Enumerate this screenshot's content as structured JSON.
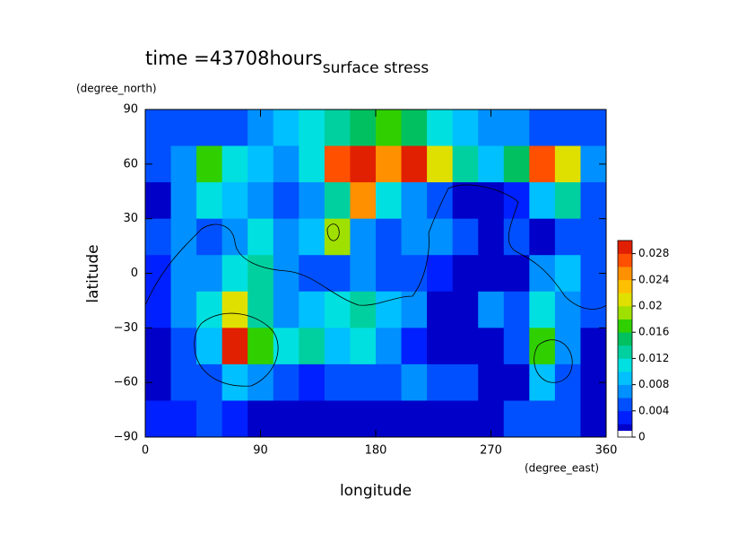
{
  "chart_data": {
    "type": "contour",
    "title": "surface stress",
    "annotation": "time =43708hours",
    "xlabel": "longitude",
    "ylabel": "latitude",
    "xunit": "(degree_east)",
    "yunit": "(degree_north)",
    "xlim": [
      0,
      360
    ],
    "ylim": [
      -90,
      90
    ],
    "xticks": [
      0,
      90,
      180,
      270,
      360
    ],
    "yticks": [
      {
        "value": -90,
        "label": "−90"
      },
      {
        "value": -60,
        "label": "−60"
      },
      {
        "value": -30,
        "label": "−30"
      },
      0,
      30,
      60,
      90
    ],
    "x": [
      10,
      30,
      50,
      70,
      90,
      110,
      130,
      150,
      170,
      190,
      210,
      230,
      250,
      270,
      290,
      310,
      330,
      350
    ],
    "y": [
      80,
      60,
      40,
      20,
      0,
      -20,
      -40,
      -60,
      -80
    ],
    "z": [
      [
        0.004,
        0.005,
        0.005,
        0.005,
        0.006,
        0.008,
        0.01,
        0.012,
        0.014,
        0.016,
        0.014,
        0.01,
        0.008,
        0.006,
        0.006,
        0.005,
        0.005,
        0.004
      ],
      [
        0.004,
        0.006,
        0.016,
        0.01,
        0.008,
        0.006,
        0.01,
        0.026,
        0.028,
        0.024,
        0.03,
        0.02,
        0.012,
        0.008,
        0.014,
        0.026,
        0.02,
        0.006
      ],
      [
        0.001,
        0.006,
        0.01,
        0.008,
        0.006,
        0.004,
        0.006,
        0.012,
        0.024,
        0.01,
        0.006,
        0.004,
        0.001,
        0.001,
        0.003,
        0.008,
        0.012,
        0.004
      ],
      [
        0.004,
        0.006,
        0.004,
        0.006,
        0.01,
        0.006,
        0.008,
        0.018,
        0.006,
        0.004,
        0.006,
        0.006,
        0.004,
        0.001,
        0.004,
        0.001,
        0.004,
        0.004
      ],
      [
        0.003,
        0.006,
        0.006,
        0.01,
        0.012,
        0.006,
        0.004,
        0.004,
        0.006,
        0.004,
        0.004,
        0.002,
        0.001,
        0.001,
        0.001,
        0.006,
        0.008,
        0.004
      ],
      [
        0.002,
        0.006,
        0.01,
        0.02,
        0.012,
        0.006,
        0.008,
        0.01,
        0.012,
        0.008,
        0.006,
        0.001,
        0.001,
        0.006,
        0.004,
        0.01,
        0.006,
        0.004
      ],
      [
        0.001,
        0.004,
        0.008,
        0.03,
        0.016,
        0.01,
        0.012,
        0.008,
        0.01,
        0.006,
        0.002,
        0.001,
        0.001,
        0.001,
        0.004,
        0.016,
        0.006,
        0.001
      ],
      [
        0.001,
        0.004,
        0.004,
        0.008,
        0.006,
        0.004,
        0.002,
        0.004,
        0.004,
        0.004,
        0.006,
        0.004,
        0.004,
        0.001,
        0.001,
        0.008,
        0.004,
        0.001
      ],
      [
        0.002,
        0.002,
        0.004,
        0.002,
        0.001,
        0.001,
        0.001,
        0.001,
        0.001,
        0.001,
        0.001,
        0.001,
        0.001,
        0.001,
        0.004,
        0.004,
        0.004,
        0.001
      ]
    ],
    "colorbar": {
      "levels": [
        0,
        0.001,
        0.002,
        0.004,
        0.006,
        0.008,
        0.01,
        0.012,
        0.014,
        0.016,
        0.018,
        0.02,
        0.022,
        0.024,
        0.026,
        0.028,
        0.03
      ],
      "colors": [
        "#ffffff",
        "#0000c8",
        "#0020ff",
        "#0050ff",
        "#0090ff",
        "#00c0ff",
        "#00e0e0",
        "#00d0a0",
        "#00c060",
        "#30d000",
        "#a0e000",
        "#e0e000",
        "#ffc000",
        "#ff9000",
        "#ff5000",
        "#e02000"
      ],
      "ticks": [
        0,
        0.004,
        0.008,
        0.012,
        0.016,
        0.02,
        0.024,
        0.028
      ]
    }
  }
}
